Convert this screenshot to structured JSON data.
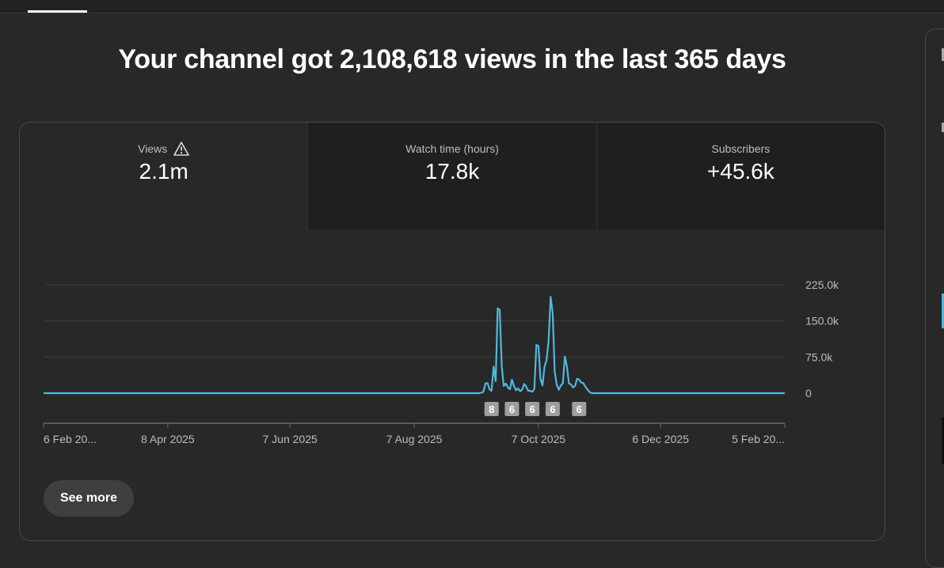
{
  "headline": "Your channel got 2,108,618 views in the last 365 days",
  "metrics": [
    {
      "label": "Views",
      "value": "2.1m",
      "icon": "warning-icon",
      "active": true
    },
    {
      "label": "Watch time (hours)",
      "value": "17.8k",
      "active": false
    },
    {
      "label": "Subscribers",
      "value": "+45.6k",
      "active": false
    }
  ],
  "colors": {
    "line": "#4fb8dc",
    "background": "#282828",
    "grid": "#3d3d3d"
  },
  "chart_data": {
    "type": "line",
    "series": [
      {
        "x": [
          "2025-09-08",
          "2025-09-09",
          "2025-09-10",
          "2025-09-11",
          "2025-09-12",
          "2025-09-13",
          "2025-09-14",
          "2025-09-15",
          "2025-09-16",
          "2025-09-17",
          "2025-09-18",
          "2025-09-19",
          "2025-09-20",
          "2025-09-21",
          "2025-09-22",
          "2025-09-23",
          "2025-09-24",
          "2025-09-25",
          "2025-09-26",
          "2025-09-27",
          "2025-09-28",
          "2025-09-29",
          "2025-09-30",
          "2025-10-01",
          "2025-10-02",
          "2025-10-03",
          "2025-10-04",
          "2025-10-05",
          "2025-10-06",
          "2025-10-07",
          "2025-10-08",
          "2025-10-09",
          "2025-10-10",
          "2025-10-11",
          "2025-10-12",
          "2025-10-13",
          "2025-10-14",
          "2025-10-15",
          "2025-10-16",
          "2025-10-17",
          "2025-10-18",
          "2025-10-19",
          "2025-10-20",
          "2025-10-21",
          "2025-10-22",
          "2025-10-23",
          "2025-10-24",
          "2025-10-25",
          "2025-10-26",
          "2025-10-27",
          "2025-10-28",
          "2025-10-29",
          "2025-10-30",
          "2025-10-31",
          "2025-11-01",
          "2025-11-02",
          "2025-11-03"
        ],
        "y": [
          0,
          1000,
          3000,
          20000,
          21000,
          8000,
          5000,
          55000,
          25000,
          176000,
          173000,
          55000,
          15000,
          20000,
          12000,
          8000,
          28000,
          15000,
          6000,
          10000,
          4000,
          7000,
          19000,
          14000,
          5000,
          5000,
          3000,
          8000,
          100000,
          98000,
          30000,
          16000,
          55000,
          68000,
          108000,
          200000,
          166000,
          45000,
          18000,
          7000,
          16000,
          20000,
          76000,
          55000,
          20000,
          18000,
          12000,
          15000,
          30000,
          28000,
          22000,
          21000,
          14000,
          8000,
          3000,
          0,
          0
        ]
      }
    ],
    "ylim": [
      0,
      225000
    ],
    "yticks": [
      0,
      75000,
      150000,
      225000
    ],
    "ytick_labels": [
      "0",
      "75.0k",
      "150.0k",
      "225.0k"
    ],
    "xlim": [
      "2025-02-06",
      "2026-02-05"
    ],
    "xticks": [
      "2025-02-06",
      "2025-04-08",
      "2025-06-07",
      "2025-08-07",
      "2025-10-07",
      "2025-12-06",
      "2026-02-05"
    ],
    "xtick_labels": [
      "6 Feb 20...",
      "8 Apr 2025",
      "7 Jun 2025",
      "7 Aug 2025",
      "7 Oct 2025",
      "6 Dec 2025",
      "5 Feb 20..."
    ],
    "markers": [
      {
        "date": "2025-09-14",
        "label": "8"
      },
      {
        "date": "2025-09-24",
        "label": "6"
      },
      {
        "date": "2025-10-04",
        "label": "6"
      },
      {
        "date": "2025-10-14",
        "label": "6"
      },
      {
        "date": "2025-10-27",
        "label": "6"
      }
    ],
    "grid": true
  },
  "see_more_label": "See more"
}
